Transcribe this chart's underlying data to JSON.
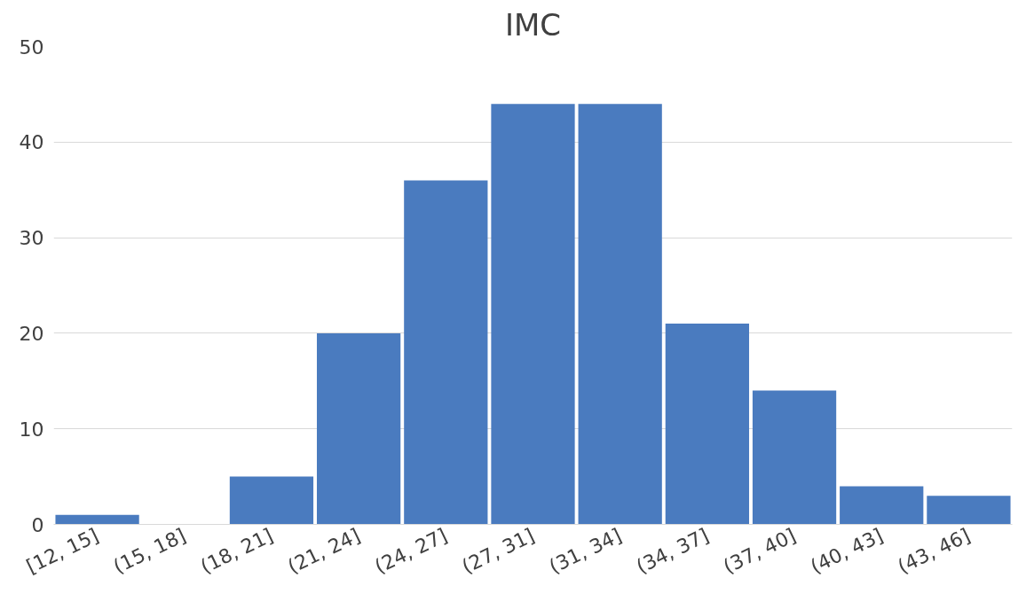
{
  "chart_data": {
    "type": "bar",
    "title": "IMC",
    "categories": [
      "[12, 15]",
      "(15, 18]",
      "(18, 21]",
      "(21, 24]",
      "(24, 27]",
      "(27, 31]",
      "(31, 34]",
      "(34, 37]",
      "(37, 40]",
      "(40, 43]",
      "(43, 46]"
    ],
    "values": [
      1,
      0,
      5,
      20,
      36,
      44,
      44,
      21,
      14,
      4,
      3
    ],
    "color": "#4a7bbf",
    "ylim": [
      0,
      50
    ],
    "yticks": [
      0,
      10,
      20,
      30,
      40,
      50
    ],
    "grid": "y"
  }
}
